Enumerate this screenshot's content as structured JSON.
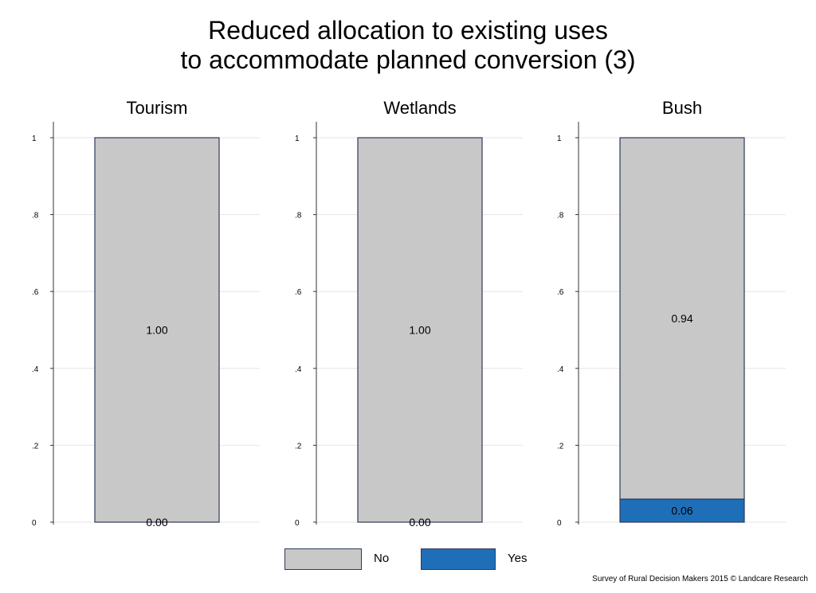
{
  "title_lines": [
    "Reduced allocation to existing uses",
    "to accommodate planned conversion (3)"
  ],
  "credit": "Survey of Rural Decision Makers 2015 © Landcare Research",
  "colors": {
    "no": "#c8c8c8",
    "yes": "#1f6fb8",
    "border": "#2e3a5c",
    "grid": "#e6e6e6"
  },
  "legend": [
    {
      "label": "No",
      "color": "#c8c8c8"
    },
    {
      "label": "Yes",
      "color": "#1f6fb8"
    }
  ],
  "chart_data": {
    "type": "bar",
    "stacked": true,
    "ylim": [
      0,
      1
    ],
    "yticks": [
      0,
      0.2,
      0.4,
      0.6,
      0.8,
      1
    ],
    "ytick_labels": [
      "0",
      ".2",
      ".4",
      ".6",
      ".8",
      "1"
    ],
    "grid": true,
    "legend_position": "bottom",
    "panels": [
      {
        "title": "Tourism",
        "series": [
          {
            "name": "No",
            "value": 1.0,
            "label": "1.00"
          },
          {
            "name": "Yes",
            "value": 0.0,
            "label": "0.00"
          }
        ]
      },
      {
        "title": "Wetlands",
        "series": [
          {
            "name": "No",
            "value": 1.0,
            "label": "1.00"
          },
          {
            "name": "Yes",
            "value": 0.0,
            "label": "0.00"
          }
        ]
      },
      {
        "title": "Bush",
        "series": [
          {
            "name": "No",
            "value": 0.94,
            "label": "0.94"
          },
          {
            "name": "Yes",
            "value": 0.06,
            "label": "0.06"
          }
        ]
      }
    ]
  }
}
